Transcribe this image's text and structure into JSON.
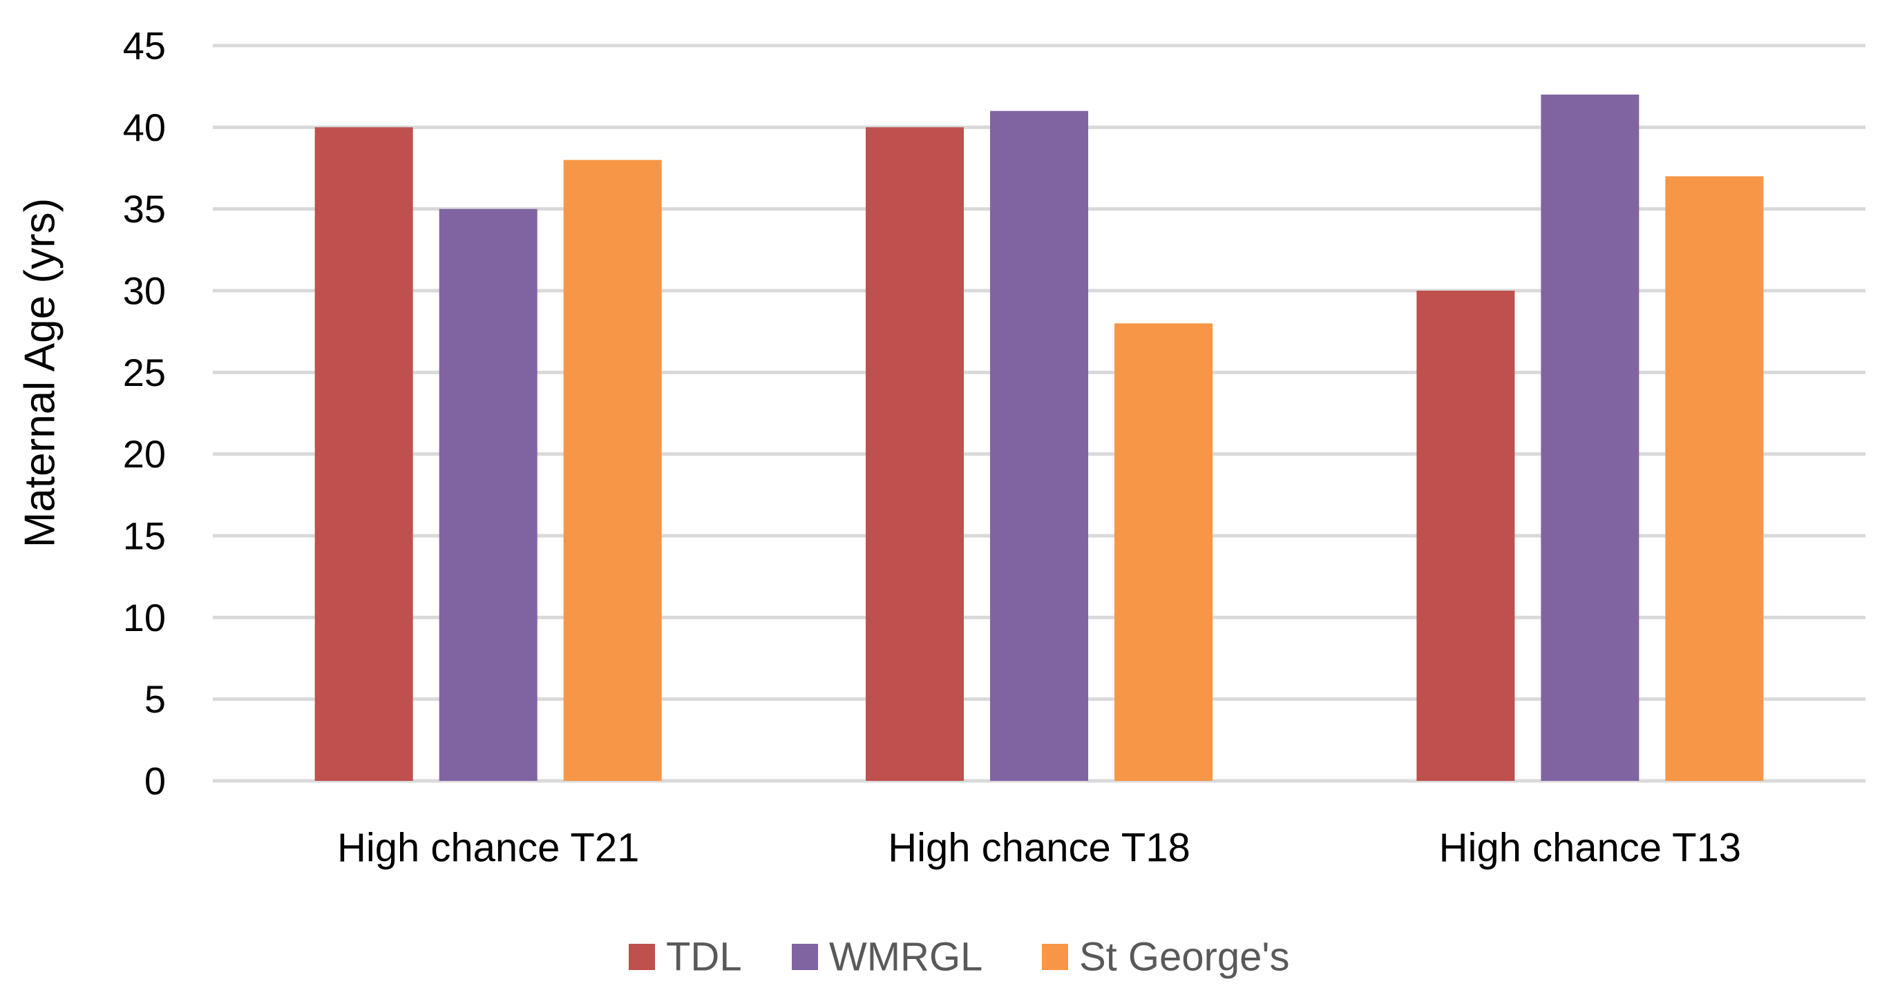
{
  "chart_data": {
    "type": "bar",
    "title": "",
    "xlabel": "",
    "ylabel": "Maternal Age (yrs)",
    "ylim": [
      0,
      45
    ],
    "yticks": [
      0,
      5,
      10,
      15,
      20,
      25,
      30,
      35,
      40,
      45
    ],
    "grid": true,
    "legend_position": "bottom",
    "categories": [
      "High chance T21",
      "High chance T18",
      "High chance T13"
    ],
    "series": [
      {
        "name": "TDL",
        "color": "#c0504d",
        "values": [
          40,
          40,
          30
        ]
      },
      {
        "name": "WMRGL",
        "color": "#8064a2",
        "values": [
          35,
          41,
          42
        ]
      },
      {
        "name": "St George's",
        "color": "#f79646",
        "values": [
          38,
          28,
          37
        ]
      }
    ]
  }
}
